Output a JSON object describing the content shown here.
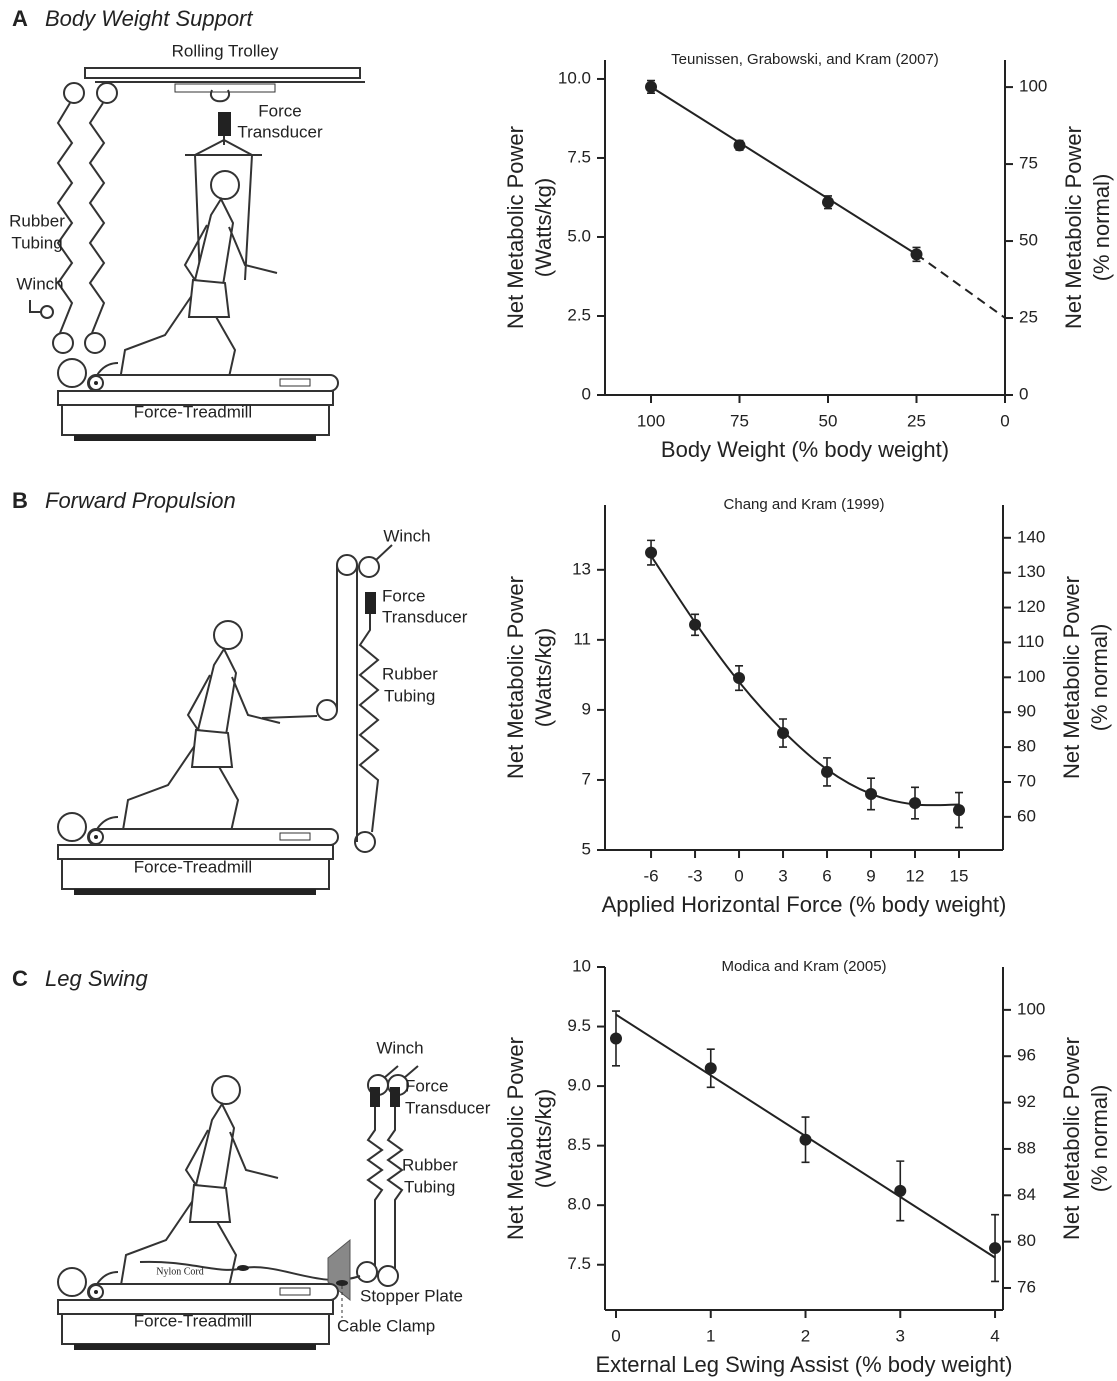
{
  "panels": [
    {
      "letter": "A",
      "title": "Body Weight Support",
      "labels": [
        "Rolling Trolley",
        "Force",
        "Transducer",
        "Rubber",
        "Tubing",
        "Winch",
        "Force-Treadmill"
      ]
    },
    {
      "letter": "B",
      "title": "Forward Propulsion",
      "labels": [
        "Winch",
        "Force",
        "Transducer",
        "Rubber",
        "Tubing",
        "Force-Treadmill"
      ]
    },
    {
      "letter": "C",
      "title": "Leg Swing",
      "labels": [
        "Winch",
        "Force",
        "Transducer",
        "Rubber",
        "Tubing",
        "Nylon Cord",
        "Stopper Plate",
        "Cable Clamp",
        "Force-Treadmill"
      ]
    }
  ],
  "chart_data": [
    {
      "type": "scatter",
      "title": "Teunissen, Grabowski, and Kram (2007)",
      "xlabel": "Body Weight (% body weight)",
      "ylabel": [
        "Net Metabolic Power",
        "(Watts/kg)"
      ],
      "y2label": [
        "Net Metabolic Power",
        "(% normal)"
      ],
      "x": [
        100,
        75,
        50,
        25
      ],
      "values": [
        9.75,
        7.9,
        6.1,
        4.45
      ],
      "errors": [
        0.2,
        0.15,
        0.2,
        0.22
      ],
      "fit": {
        "x": [
          100,
          25
        ],
        "y": [
          9.75,
          4.45
        ]
      },
      "extrapolation": {
        "x": [
          25,
          0
        ],
        "y": [
          4.45,
          2.44
        ]
      },
      "xlim": [
        113,
        0
      ],
      "ylim": [
        0,
        10.6
      ],
      "y2lim": [
        0,
        108.8
      ],
      "xticks": [
        100,
        75,
        50,
        25,
        0
      ],
      "yticks": [
        0,
        2.5,
        {
          "value": 5,
          "label": "5.0"
        },
        7.5,
        {
          "value": 10,
          "label": "10.0"
        }
      ],
      "y2ticks": [
        0,
        25,
        50,
        75,
        100
      ],
      "color": "#222222"
    },
    {
      "type": "scatter",
      "title": "Chang and Kram (1999)",
      "xlabel": "Applied Horizontal Force (% body weight)",
      "ylabel": [
        "Net Metabolic Power",
        "(Watts/kg)"
      ],
      "y2label": [
        "Net Metabolic Power",
        "(% normal)"
      ],
      "x": [
        -6,
        -3,
        0,
        3,
        6,
        9,
        12,
        15
      ],
      "values": [
        13.49,
        11.43,
        9.91,
        8.34,
        7.23,
        6.6,
        6.34,
        6.14
      ],
      "errors": [
        0.35,
        0.3,
        0.35,
        0.4,
        0.4,
        0.45,
        0.45,
        0.5
      ],
      "fit": {
        "x": [
          -6,
          -3,
          0,
          3,
          6,
          9,
          12,
          15
        ],
        "y": [
          13.4,
          11.5,
          9.8,
          8.4,
          7.3,
          6.6,
          6.3,
          6.3
        ],
        "smooth": true
      },
      "xlim": [
        -9.14,
        18
      ],
      "ylim": [
        5,
        14.85
      ],
      "y2lim": [
        50.5,
        149.4
      ],
      "xticks": [
        -6,
        -3,
        0,
        3,
        6,
        9,
        12,
        15
      ],
      "yticks": [
        5,
        7,
        9,
        11,
        13
      ],
      "y2ticks": [
        60,
        70,
        80,
        90,
        100,
        110,
        120,
        130,
        140
      ],
      "color": "#222222"
    },
    {
      "type": "scatter",
      "title": "Modica and Kram (2005)",
      "xlabel": "External Leg Swing Assist (% body weight)",
      "ylabel": [
        "Net Metabolic Power",
        "(Watts/kg)"
      ],
      "y2label": [
        "Net Metabolic Power",
        "(% normal)"
      ],
      "x": [
        0,
        1,
        2,
        3,
        4
      ],
      "values": [
        9.4,
        9.15,
        8.55,
        8.12,
        7.64
      ],
      "errors": [
        0.23,
        0.16,
        0.19,
        0.25,
        0.28
      ],
      "fit": {
        "x": [
          0,
          4
        ],
        "y": [
          9.6,
          7.56
        ]
      },
      "xlim": [
        -0.116,
        4.084
      ],
      "ylim": [
        7.12,
        10
      ],
      "y2lim": [
        74.1,
        103.7
      ],
      "xticks": [
        0,
        1,
        2,
        3,
        4
      ],
      "yticks": [
        7.5,
        {
          "value": 8,
          "label": "8.0"
        },
        8.5,
        {
          "value": 9,
          "label": "9.0"
        },
        9.5,
        10
      ],
      "y2ticks": [
        76,
        80,
        84,
        88,
        92,
        96,
        100
      ],
      "color": "#222222"
    }
  ]
}
